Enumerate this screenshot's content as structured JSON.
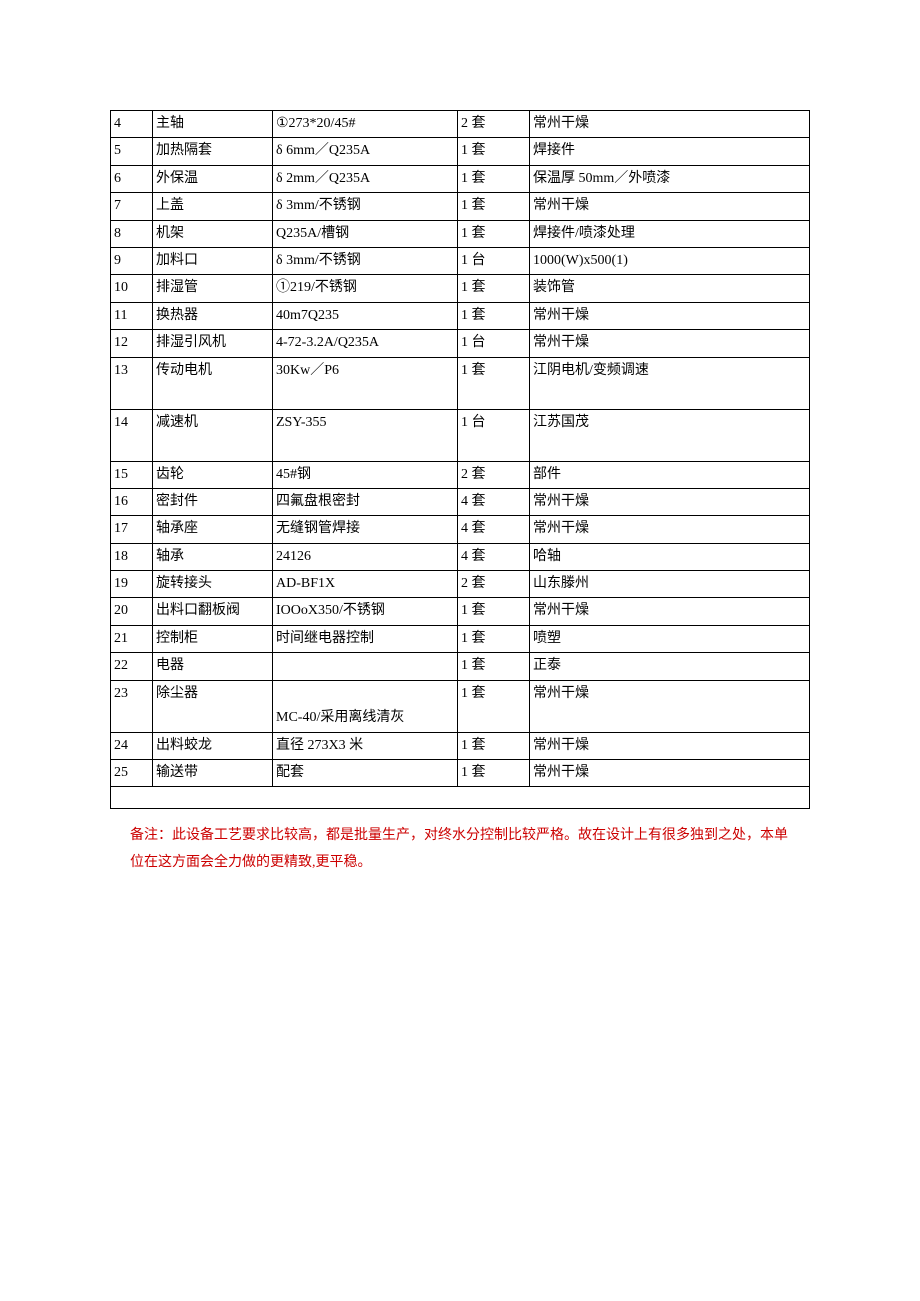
{
  "table": {
    "column_widths": [
      "42px",
      "120px",
      "185px",
      "72px",
      "auto"
    ],
    "border_color": "#000000",
    "text_color": "#000000",
    "font_size_pt": 11,
    "rows": [
      {
        "no": "4",
        "name": "主轴",
        "spec": "①273*20/45#",
        "qty": "2 套",
        "remark": "常州干燥"
      },
      {
        "no": "5",
        "name": "加热隔套",
        "spec": "δ 6mm／Q235A",
        "qty": "1 套",
        "remark": "焊接件"
      },
      {
        "no": "6",
        "name": "外保温",
        "spec": "δ 2mm／Q235A",
        "qty": "1 套",
        "remark": "保温厚 50mm／外喷漆"
      },
      {
        "no": "7",
        "name": "上盖",
        "spec": "δ 3mm/不锈钢",
        "qty": "1 套",
        "remark": "常州干燥"
      },
      {
        "no": "8",
        "name": "机架",
        "spec": "Q235A/槽钢",
        "qty": "1 套",
        "remark": "焊接件/喷漆处理"
      },
      {
        "no": "9",
        "name": "加料口",
        "spec": "δ 3mm/不锈钢",
        "qty": "1 台",
        "remark": "1000(W)x500(1)"
      },
      {
        "no": "10",
        "name": "排湿管",
        "spec": "①219/不锈钢",
        "qty": "1 套",
        "remark": "装饰管"
      },
      {
        "no": "11",
        "name": "换热器",
        "spec": "40m7Q235",
        "qty": "1 套",
        "remark": "常州干燥"
      },
      {
        "no": "12",
        "name": "排湿引风机",
        "spec": "4-72-3.2A/Q235A",
        "qty": "1 台",
        "remark": "常州干燥"
      },
      {
        "no": "13",
        "name": "传动电机",
        "spec": "30Kw／P6",
        "qty": "1 套",
        "remark": "江阴电机/变频调速",
        "tall": true
      },
      {
        "no": "14",
        "name": "减速机",
        "spec": "ZSY-355",
        "qty": "1 台",
        "remark": "江苏国茂",
        "tall": true
      },
      {
        "no": "15",
        "name": "齿轮",
        "spec": "45#钢",
        "qty": "2 套",
        "remark": "部件"
      },
      {
        "no": "16",
        "name": "密封件",
        "spec": "四氟盘根密封",
        "qty": "4 套",
        "remark": "常州干燥"
      },
      {
        "no": "17",
        "name": "轴承座",
        "spec": "无缝钢管焊接",
        "qty": "4 套",
        "remark": "常州干燥"
      },
      {
        "no": "18",
        "name": "轴承",
        "spec": "24126",
        "qty": "4 套",
        "remark": "哈轴"
      },
      {
        "no": "19",
        "name": "旋转接头",
        "spec": "AD-BF1X",
        "qty": "2 套",
        "remark": "山东滕州"
      },
      {
        "no": "20",
        "name": "出料口翻板阀",
        "spec": "IOOoX350/不锈钢",
        "qty": "1 套",
        "remark": "常州干燥"
      },
      {
        "no": "21",
        "name": "控制柜",
        "spec": "时间继电器控制",
        "qty": "1 套",
        "remark": "喷塑"
      },
      {
        "no": "22",
        "name": "电器",
        "spec": "",
        "qty": "1 套",
        "remark": "正泰"
      },
      {
        "no": "23",
        "name": "除尘器",
        "spec": "MC-40/采用离线清灰",
        "qty": "1 套",
        "remark": "常州干燥",
        "double_line": true
      },
      {
        "no": "24",
        "name": "出料蛟龙",
        "spec": "直径 273X3 米",
        "qty": "1 套",
        "remark": "常州干燥"
      },
      {
        "no": "25",
        "name": "输送带",
        "spec": "配套",
        "qty": "1 套",
        "remark": "常州干燥"
      }
    ]
  },
  "note": {
    "text": "备注：此设备工艺要求比较高，都是批量生产，对终水分控制比较严格。故在设计上有很多独到之处，本单位在这方面会全力做的更精致,更平稳。",
    "color": "#cc0000",
    "font_size_pt": 11
  }
}
